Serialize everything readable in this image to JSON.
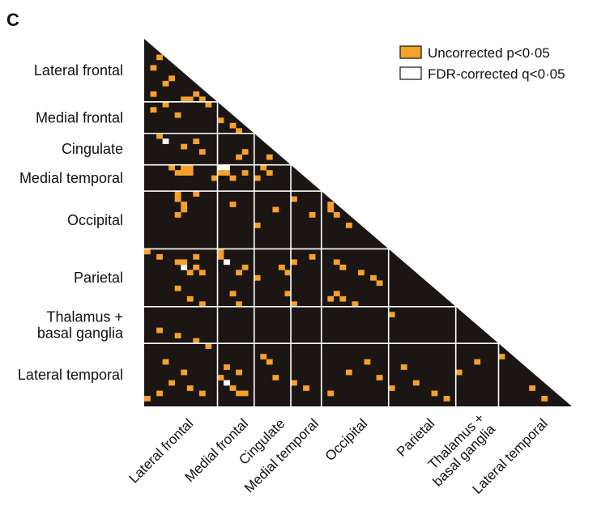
{
  "panel_label": "C",
  "legend": {
    "uncorrected": "Uncorrected p<0·05",
    "fdr": "FDR-corrected q<0·05"
  },
  "colors": {
    "background": "#ffffff",
    "matrix": "#1b1513",
    "uncorrected": "#f5a12a",
    "fdr": "#ffffff",
    "grid": "#ffffff"
  },
  "chart_data": {
    "type": "heatmap",
    "regions": [
      {
        "name": "Lateral frontal",
        "row_lines": [
          "Lateral frontal"
        ],
        "size": 12
      },
      {
        "name": "Medial frontal",
        "row_lines": [
          "Medial frontal"
        ],
        "size": 6
      },
      {
        "name": "Cingulate",
        "row_lines": [
          "Cingulate"
        ],
        "size": 6
      },
      {
        "name": "Medial temporal",
        "row_lines": [
          "Medial temporal"
        ],
        "size": 5
      },
      {
        "name": "Occipital",
        "row_lines": [
          "Occipital"
        ],
        "size": 11
      },
      {
        "name": "Parietal",
        "row_lines": [
          "Parietal"
        ],
        "size": 11
      },
      {
        "name": "Thalamus + basal ganglia",
        "row_lines": [
          "Thalamus +",
          "basal ganglia"
        ],
        "size": 7
      },
      {
        "name": "Lateral temporal",
        "row_lines": [
          "Lateral temporal"
        ],
        "size": 12
      }
    ],
    "column_labels": [
      [
        "Lateral frontal"
      ],
      [
        "Medial frontal"
      ],
      [
        "Cingulate"
      ],
      [
        "Medial temporal"
      ],
      [
        "Occipital"
      ],
      [
        "Parietal"
      ],
      [
        "Thalamus +",
        "basal ganglia"
      ],
      [
        "Lateral temporal"
      ]
    ],
    "matrix_size": 70,
    "cells": [
      [
        3,
        2,
        "u"
      ],
      [
        5,
        1,
        "u"
      ],
      [
        7,
        4,
        "u"
      ],
      [
        8,
        3,
        "u"
      ],
      [
        10,
        1,
        "u"
      ],
      [
        11,
        6,
        "u"
      ],
      [
        11,
        7,
        "u"
      ],
      [
        10,
        8,
        "u"
      ],
      [
        11,
        9,
        "u"
      ],
      [
        9,
        10,
        "u"
      ],
      [
        12,
        3,
        "u"
      ],
      [
        13,
        1,
        "u"
      ],
      [
        12,
        10,
        "u"
      ],
      [
        14,
        5,
        "u"
      ],
      [
        15,
        12,
        "u"
      ],
      [
        16,
        14,
        "u"
      ],
      [
        17,
        15,
        "u"
      ],
      [
        14,
        16,
        "u"
      ],
      [
        13,
        17,
        "u"
      ],
      [
        18,
        2,
        "u"
      ],
      [
        19,
        3,
        "f"
      ],
      [
        20,
        6,
        "u"
      ],
      [
        19,
        8,
        "u"
      ],
      [
        21,
        9,
        "u"
      ],
      [
        22,
        15,
        "u"
      ],
      [
        21,
        16,
        "u"
      ],
      [
        22,
        20,
        "u"
      ],
      [
        19,
        22,
        "u"
      ],
      [
        24,
        4,
        "u"
      ],
      [
        25,
        5,
        "u"
      ],
      [
        24,
        6,
        "u"
      ],
      [
        25,
        6,
        "u"
      ],
      [
        24,
        7,
        "u"
      ],
      [
        25,
        7,
        "u"
      ],
      [
        26,
        11,
        "u"
      ],
      [
        24,
        12,
        "f"
      ],
      [
        25,
        12,
        "u"
      ],
      [
        24,
        13,
        "f"
      ],
      [
        25,
        13,
        "u"
      ],
      [
        26,
        14,
        "u"
      ],
      [
        25,
        16,
        "u"
      ],
      [
        26,
        18,
        "u"
      ],
      [
        24,
        19,
        "u"
      ],
      [
        25,
        20,
        "u"
      ],
      [
        29,
        5,
        "u"
      ],
      [
        30,
        5,
        "u"
      ],
      [
        31,
        6,
        "u"
      ],
      [
        32,
        6,
        "u"
      ],
      [
        33,
        5,
        "u"
      ],
      [
        29,
        8,
        "u"
      ],
      [
        31,
        14,
        "u"
      ],
      [
        35,
        18,
        "u"
      ],
      [
        32,
        21,
        "u"
      ],
      [
        30,
        24,
        "u"
      ],
      [
        33,
        27,
        "u"
      ],
      [
        31,
        30,
        "u"
      ],
      [
        32,
        30,
        "u"
      ],
      [
        33,
        31,
        "u"
      ],
      [
        35,
        33,
        "u"
      ],
      [
        40,
        0,
        "u"
      ],
      [
        41,
        2,
        "u"
      ],
      [
        42,
        5,
        "u"
      ],
      [
        43,
        6,
        "f"
      ],
      [
        42,
        6,
        "u"
      ],
      [
        44,
        7,
        "u"
      ],
      [
        43,
        8,
        "u"
      ],
      [
        41,
        8,
        "u"
      ],
      [
        44,
        9,
        "u"
      ],
      [
        40,
        12,
        "u"
      ],
      [
        41,
        12,
        "u"
      ],
      [
        42,
        13,
        "f"
      ],
      [
        44,
        15,
        "u"
      ],
      [
        43,
        16,
        "u"
      ],
      [
        45,
        18,
        "u"
      ],
      [
        43,
        22,
        "u"
      ],
      [
        44,
        23,
        "u"
      ],
      [
        42,
        24,
        "u"
      ],
      [
        41,
        27,
        "u"
      ],
      [
        42,
        31,
        "u"
      ],
      [
        43,
        32,
        "u"
      ],
      [
        44,
        35,
        "u"
      ],
      [
        45,
        37,
        "u"
      ],
      [
        46,
        38,
        "u"
      ],
      [
        47,
        5,
        "u"
      ],
      [
        49,
        7,
        "u"
      ],
      [
        50,
        9,
        "u"
      ],
      [
        48,
        14,
        "u"
      ],
      [
        50,
        15,
        "u"
      ],
      [
        48,
        23,
        "u"
      ],
      [
        50,
        24,
        "u"
      ],
      [
        49,
        30,
        "u"
      ],
      [
        48,
        31,
        "u"
      ],
      [
        49,
        32,
        "u"
      ],
      [
        50,
        34,
        "u"
      ],
      [
        52,
        40,
        "u"
      ],
      [
        55,
        2,
        "u"
      ],
      [
        56,
        5,
        "u"
      ],
      [
        57,
        8,
        "u"
      ],
      [
        58,
        10,
        "u"
      ],
      [
        61,
        3,
        "u"
      ],
      [
        63,
        6,
        "u"
      ],
      [
        65,
        4,
        "u"
      ],
      [
        66,
        7,
        "u"
      ],
      [
        67,
        9,
        "u"
      ],
      [
        68,
        0,
        "u"
      ],
      [
        67,
        2,
        "u"
      ],
      [
        64,
        12,
        "u"
      ],
      [
        65,
        13,
        "f"
      ],
      [
        66,
        14,
        "u"
      ],
      [
        67,
        15,
        "u"
      ],
      [
        67,
        16,
        "u"
      ],
      [
        63,
        15,
        "u"
      ],
      [
        62,
        13,
        "u"
      ],
      [
        60,
        19,
        "u"
      ],
      [
        61,
        20,
        "u"
      ],
      [
        64,
        21,
        "u"
      ],
      [
        65,
        24,
        "u"
      ],
      [
        66,
        26,
        "u"
      ],
      [
        67,
        30,
        "u"
      ],
      [
        63,
        33,
        "u"
      ],
      [
        61,
        36,
        "u"
      ],
      [
        64,
        38,
        "u"
      ],
      [
        66,
        40,
        "u"
      ],
      [
        62,
        42,
        "u"
      ],
      [
        65,
        44,
        "u"
      ],
      [
        67,
        47,
        "u"
      ],
      [
        68,
        49,
        "u"
      ],
      [
        63,
        51,
        "u"
      ],
      [
        61,
        54,
        "u"
      ],
      [
        60,
        58,
        "u"
      ],
      [
        59,
        62,
        "u"
      ],
      [
        66,
        63,
        "u"
      ],
      [
        68,
        65,
        "u"
      ]
    ]
  }
}
